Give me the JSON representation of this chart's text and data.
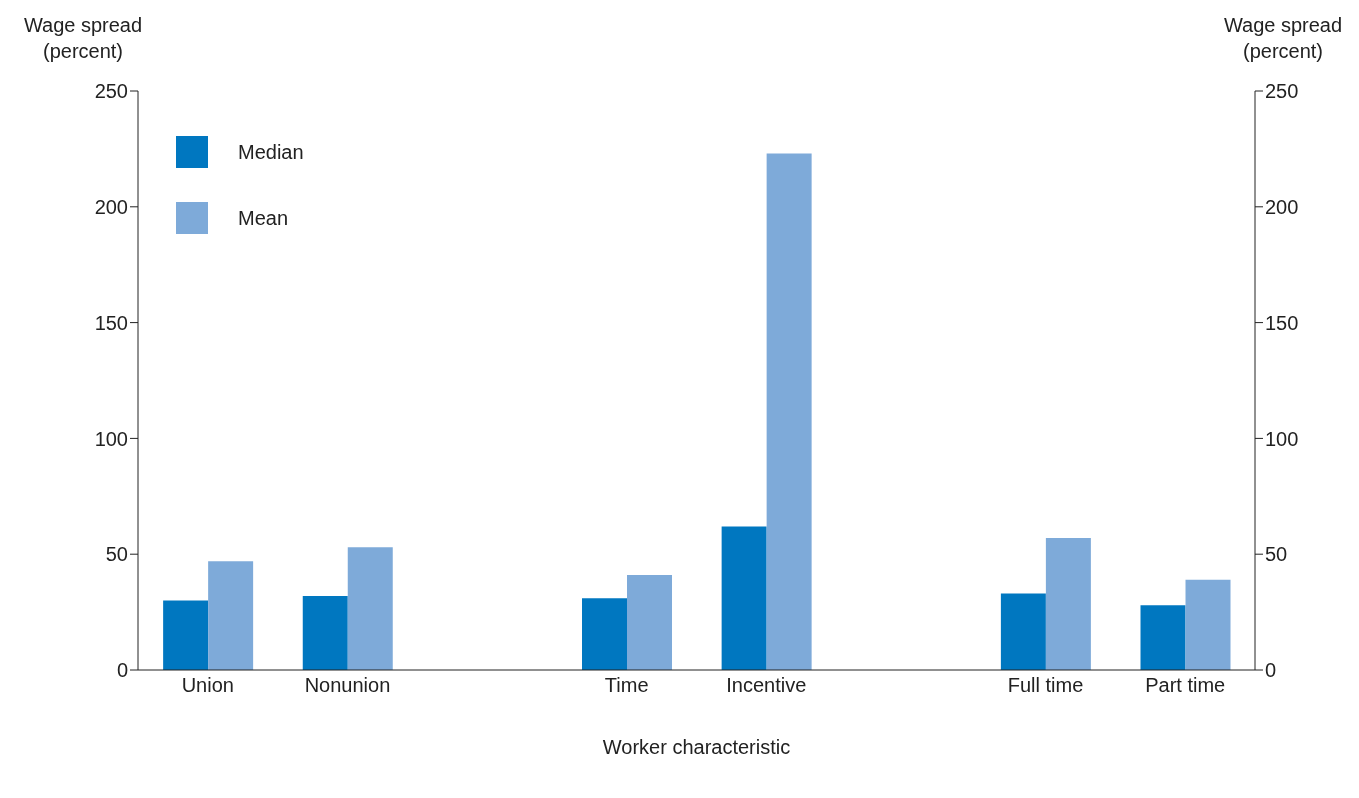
{
  "chart_data": {
    "type": "bar",
    "xlabel": "Worker characteristic",
    "ylabel": "Wage spread\n(percent)",
    "y2label": "Wage spread\n(percent)",
    "categories": [
      "Union",
      "Nonunion",
      null,
      "Time",
      "Incentive",
      null,
      "Full time",
      "Part time"
    ],
    "series": [
      {
        "name": "Median",
        "color": "#0077c0",
        "values": [
          30,
          32,
          null,
          31,
          62,
          null,
          33,
          28
        ]
      },
      {
        "name": "Mean",
        "color": "#7eaad9",
        "values": [
          47,
          53,
          null,
          41,
          223,
          null,
          57,
          39
        ]
      }
    ],
    "ylim": [
      0,
      250
    ],
    "yticks": [
      0,
      50,
      100,
      150,
      200,
      250
    ],
    "y2lim": [
      0,
      250
    ],
    "y2ticks": [
      0,
      50,
      100,
      150,
      200,
      250
    ],
    "grid": false,
    "legend": "top left"
  }
}
